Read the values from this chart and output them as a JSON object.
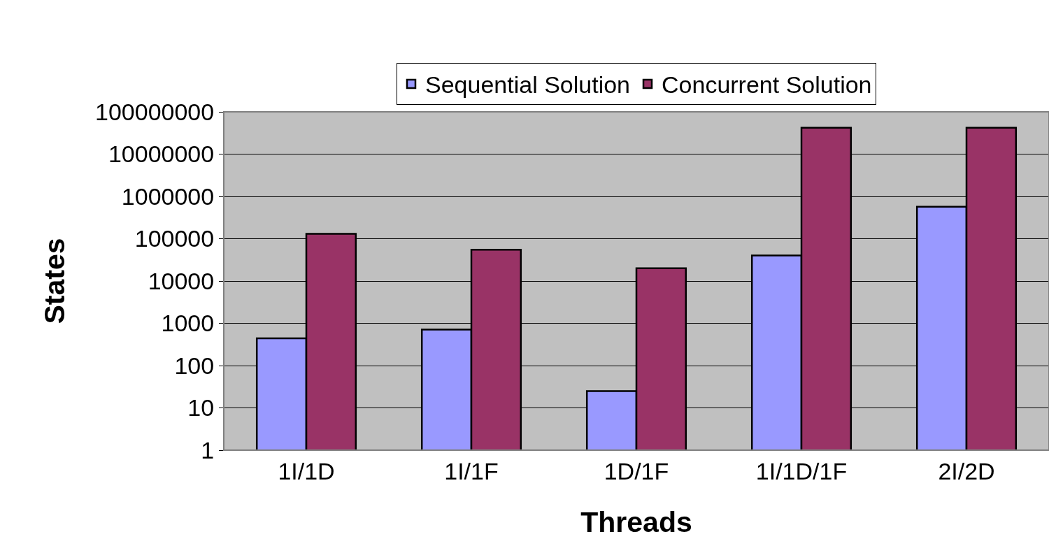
{
  "chart_data": {
    "type": "bar",
    "xlabel": "Threads",
    "ylabel": "States",
    "categories": [
      "1I/1D",
      "1I/1F",
      "1D/1F",
      "1I/1D/1F",
      "2I/2D"
    ],
    "series": [
      {
        "name": "Sequential Solution",
        "color": "#9999ff",
        "values": [
          440,
          710,
          25,
          40000,
          570000
        ]
      },
      {
        "name": "Concurrent Solution",
        "color": "#993366",
        "values": [
          130000,
          55000,
          20000,
          42000000,
          42000000
        ]
      }
    ],
    "log": "y",
    "ylim": [
      1,
      100000000
    ],
    "yticks": [
      1,
      10,
      100,
      1000,
      10000,
      100000,
      1000000,
      10000000,
      100000000
    ],
    "grid": "y",
    "legend": "top"
  }
}
